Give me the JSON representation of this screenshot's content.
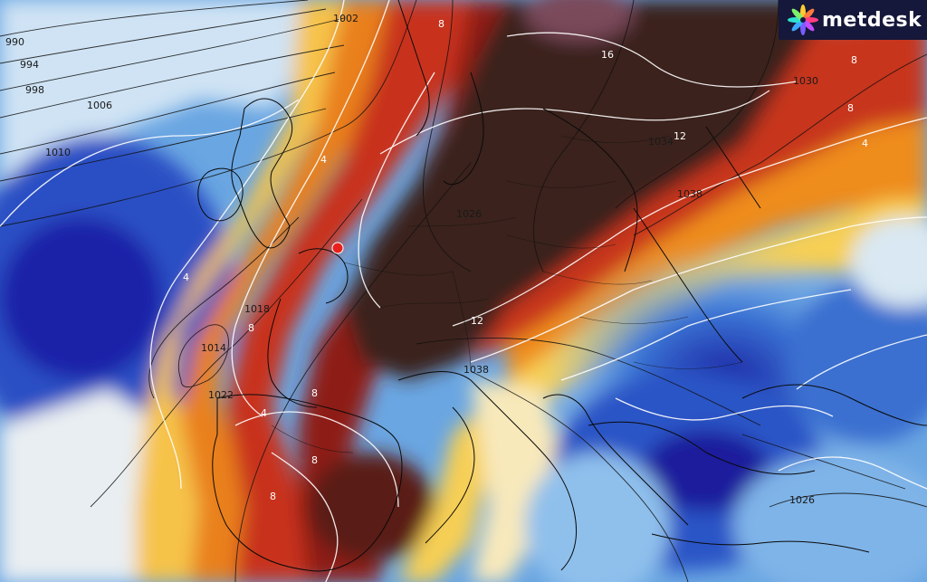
{
  "brand": {
    "name": "metdesk",
    "icon": "starburst-logo-icon"
  },
  "legend_colors": {
    "cold_deep": "#1d2bb0",
    "cold": "#3f7fd8",
    "cool": "#a9d3f0",
    "neutral": "#f4f1e6",
    "mild": "#f7d25a",
    "warm": "#f29a1e",
    "hot": "#d8421a",
    "very_hot": "#8d1c10",
    "extreme": "#3b211e"
  },
  "isobar_labels": [
    "990",
    "994",
    "998",
    "1002",
    "1006",
    "1010",
    "1014",
    "1018",
    "1022",
    "1026",
    "1030",
    "1034",
    "1038",
    "1038",
    "1026"
  ],
  "temperature_labels": [
    "4",
    "4",
    "4",
    "8",
    "8",
    "8",
    "8",
    "8",
    "8",
    "12",
    "12",
    "16",
    "4",
    "8"
  ],
  "marker": {
    "name": "location-marker",
    "color": "#e8211d"
  }
}
